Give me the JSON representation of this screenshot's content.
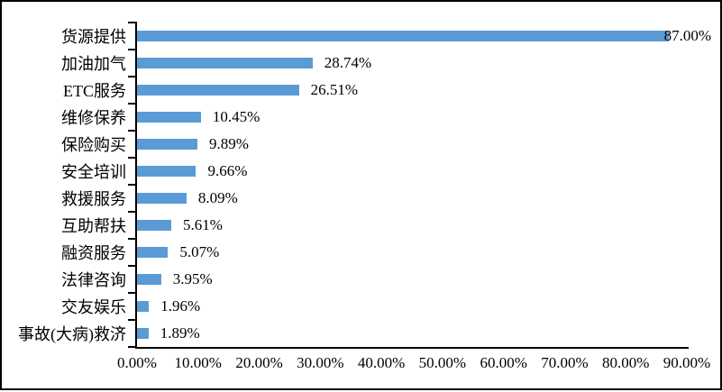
{
  "chart_data": {
    "type": "bar",
    "orientation": "horizontal",
    "title": "",
    "xlabel": "",
    "ylabel": "",
    "categories": [
      "货源提供",
      "加油加气",
      "ETC服务",
      "维修保养",
      "保险购买",
      "安全培训",
      "救援服务",
      "互助帮扶",
      "融资服务",
      "法律咨询",
      "交友娱乐",
      "事故(大病)救济"
    ],
    "values": [
      87.0,
      28.74,
      26.51,
      10.45,
      9.89,
      9.66,
      8.09,
      5.61,
      5.07,
      3.95,
      1.96,
      1.89
    ],
    "data_labels": [
      "87.00%",
      "28.74%",
      "26.51%",
      "10.45%",
      "9.89%",
      "9.66%",
      "8.09%",
      "5.61%",
      "5.07%",
      "3.95%",
      "1.96%",
      "1.89%"
    ],
    "x_tick_labels": [
      "0.00%",
      "10.00%",
      "20.00%",
      "30.00%",
      "40.00%",
      "50.00%",
      "60.00%",
      "70.00%",
      "80.00%",
      "90.00%"
    ],
    "x_tick_values": [
      0,
      10,
      20,
      30,
      40,
      50,
      60,
      70,
      80,
      90
    ],
    "xlim": [
      0,
      90
    ],
    "grid": "off",
    "legend": "none",
    "bar_color": "#5B9BD5",
    "axis_color": "#000000",
    "text_color": "#000000",
    "background_color": "#ffffff"
  }
}
